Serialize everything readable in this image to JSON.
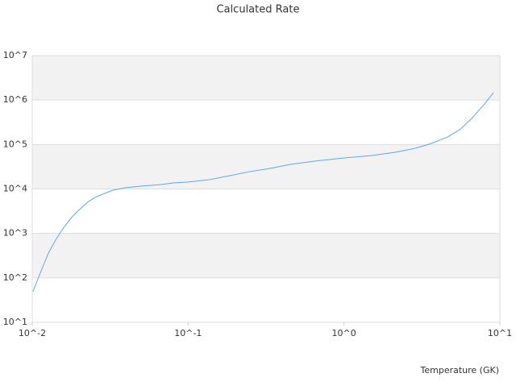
{
  "chart_data": {
    "type": "line",
    "title": "Calculated Rate",
    "x_label": "Temperature (GK)",
    "x_scale": "log",
    "y_scale": "log",
    "bands": true,
    "xlim": [
      0.01,
      10
    ],
    "ylim": [
      10,
      10000000
    ],
    "xticks": [
      {
        "value": 0.01,
        "label": "10^-2"
      },
      {
        "value": 0.1,
        "label": "10^-1"
      },
      {
        "value": 1,
        "label": "10^0"
      },
      {
        "value": 10,
        "label": "10^1"
      }
    ],
    "yticks": [
      {
        "value": 10,
        "label": "10^1"
      },
      {
        "value": 100,
        "label": "10^2"
      },
      {
        "value": 1000,
        "label": "10^3"
      },
      {
        "value": 10000,
        "label": "10^4"
      },
      {
        "value": 100000,
        "label": "10^5"
      },
      {
        "value": 1000000,
        "label": "10^6"
      },
      {
        "value": 10000000,
        "label": "10^7"
      }
    ],
    "x": [
      0.0101,
      0.0113,
      0.0127,
      0.0143,
      0.0161,
      0.0182,
      0.0204,
      0.023,
      0.0259,
      0.0292,
      0.0329,
      0.0393,
      0.0499,
      0.0672,
      0.0804,
      0.1,
      0.1375,
      0.185,
      0.249,
      0.336,
      0.452,
      0.647,
      1.0,
      1.49,
      2.13,
      2.87,
      3.64,
      4.62,
      5.52,
      6.6,
      7.89,
      9.1
    ],
    "series": [
      {
        "color": "#5aa9f0",
        "values": [
          49,
          133,
          363,
          767,
          1435,
          2470,
          3600,
          5250,
          6730,
          7950,
          9400,
          10650,
          11600,
          12600,
          13700,
          14300,
          16200,
          19950,
          24600,
          29000,
          35700,
          42200,
          49900,
          56300,
          66800,
          82200,
          105700,
          148000,
          214000,
          385000,
          783000,
          1465000
        ]
      }
    ]
  }
}
